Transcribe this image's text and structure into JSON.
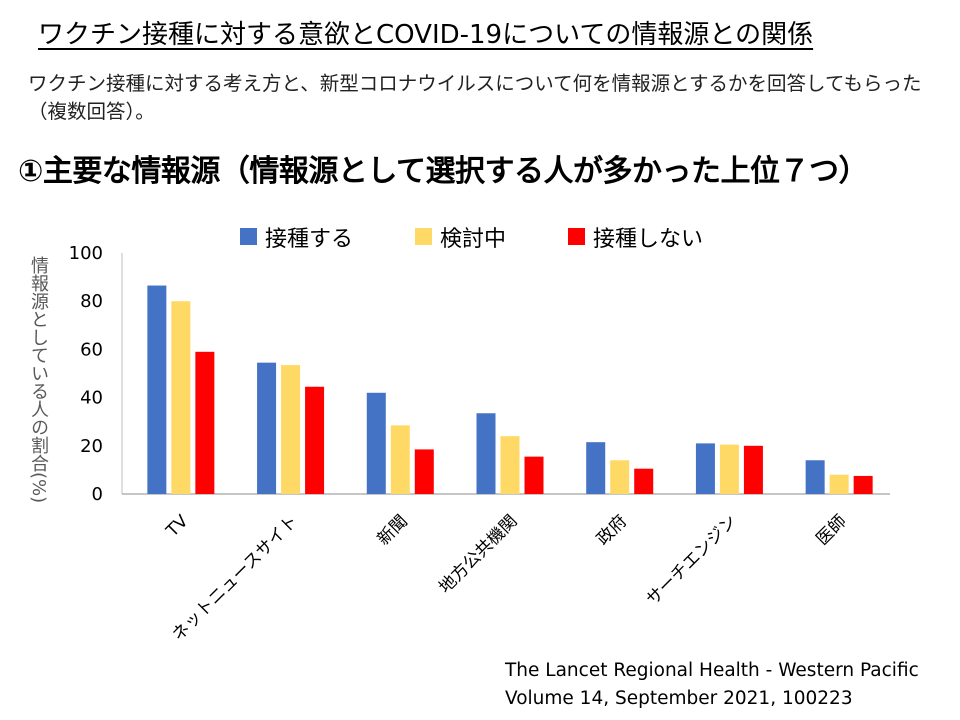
{
  "slide": {
    "title": "ワクチン接種に対する意欲とCOVID-19についての情報源との関係",
    "description": "ワクチン接種に対する考え方と、新型コロナウイルスについて何を情報源とするかを回答してもらった（複数回答）。",
    "subtitle": "①主要な情報源（情報源として選択する人が多かった上位７つ）",
    "citation_line1": "The Lancet Regional Health - Western Pacific",
    "citation_line2": "Volume 14, September 2021, 100223"
  },
  "chart_data": {
    "type": "bar",
    "title": "",
    "xlabel": "",
    "ylabel": "情報源としている人の割合(%)",
    "ylim": [
      0,
      100
    ],
    "yticks": [
      0,
      20,
      40,
      60,
      80,
      100
    ],
    "grid": false,
    "legend_position": "top",
    "categories": [
      "TV",
      "ネットニュースサイト",
      "新聞",
      "地方公共機関",
      "政府",
      "サーチエンジン",
      "医師"
    ],
    "series": [
      {
        "name": "接種する",
        "color": "#4472C4",
        "values": [
          86.5,
          54.5,
          42,
          33.5,
          21.5,
          21,
          14
        ]
      },
      {
        "name": "検討中",
        "color": "#FFD966",
        "values": [
          80,
          53.5,
          28.5,
          24,
          14,
          20.5,
          8
        ]
      },
      {
        "name": "接種しない",
        "color": "#FF0000",
        "values": [
          59,
          44.5,
          18.5,
          15.5,
          10.5,
          20,
          7.5
        ]
      }
    ]
  }
}
